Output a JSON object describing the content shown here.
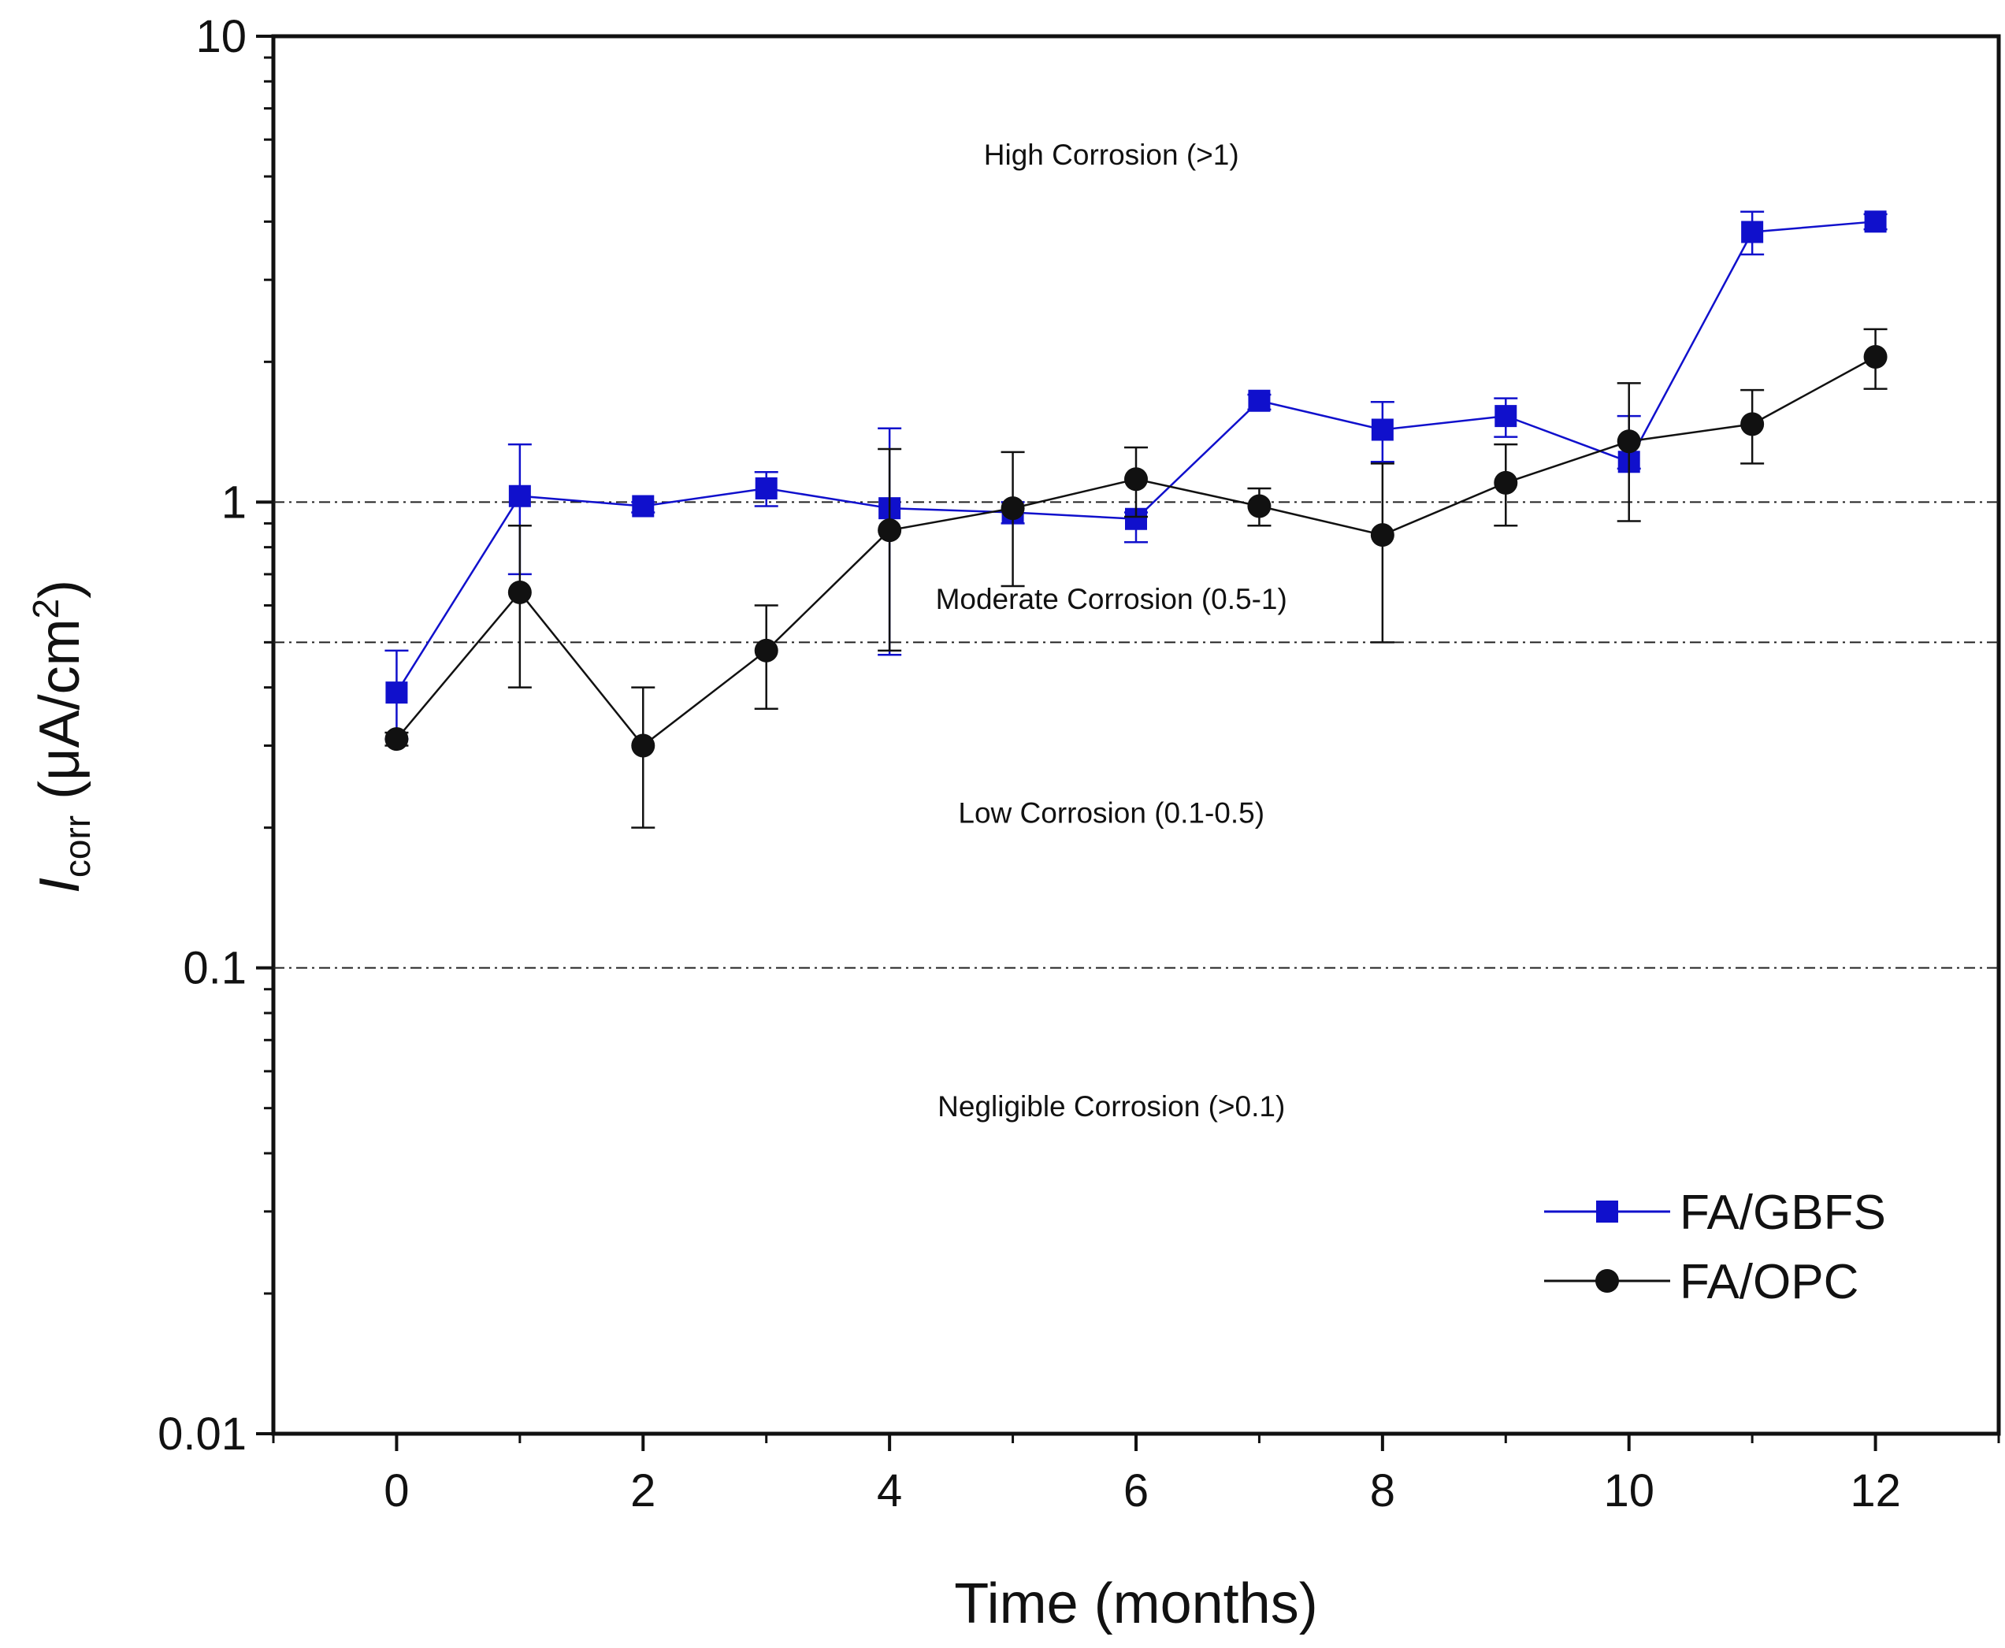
{
  "chart_data": {
    "type": "line",
    "ylabel_main": "I",
    "ylabel_sub": "corr",
    "ylabel_unit_prefix": " (μA/cm",
    "ylabel_unit_sup": "2",
    "ylabel_unit_suffix": ")",
    "xlabel": "Time (months)",
    "yscale": "log",
    "xlim": [
      -1,
      13
    ],
    "ylim": [
      0.01,
      10
    ],
    "x_ticks": [
      0,
      2,
      4,
      6,
      8,
      10,
      12
    ],
    "x_tick_labels": [
      "0",
      "2",
      "4",
      "6",
      "8",
      "10",
      "12"
    ],
    "y_ticks": [
      0.01,
      0.1,
      1,
      10
    ],
    "y_tick_labels": [
      "0.01",
      "0.1",
      "1",
      "10"
    ],
    "thresholds": [
      1,
      0.5,
      0.1
    ],
    "regions": [
      {
        "label": "High Corrosion (>1)",
        "x": 5.8,
        "y": 5.3
      },
      {
        "label": "Moderate Corrosion (0.5-1)",
        "x": 5.8,
        "y": 0.59
      },
      {
        "label": "Low Corrosion (0.1-0.5)",
        "x": 5.8,
        "y": 0.205
      },
      {
        "label": "Negligible Corrosion (>0.1)",
        "x": 5.8,
        "y": 0.048
      }
    ],
    "series": [
      {
        "name": "FA/GBFS",
        "color": "#1010cc",
        "marker": "square",
        "x": [
          0,
          1,
          2,
          3,
          4,
          5,
          6,
          7,
          8,
          9,
          10,
          11,
          12
        ],
        "y": [
          0.39,
          1.03,
          0.98,
          1.07,
          0.97,
          0.95,
          0.92,
          1.65,
          1.43,
          1.53,
          1.22,
          3.8,
          4.0
        ],
        "err_low": [
          0.31,
          0.7,
          0.95,
          0.98,
          0.47,
          0.9,
          0.82,
          1.58,
          1.22,
          1.38,
          1.18,
          3.4,
          3.85
        ],
        "err_high": [
          0.48,
          1.33,
          1.0,
          1.16,
          1.44,
          1.0,
          0.95,
          1.7,
          1.64,
          1.67,
          1.53,
          4.2,
          4.15
        ]
      },
      {
        "name": "FA/OPC",
        "color": "#111111",
        "marker": "circle",
        "x": [
          0,
          1,
          2,
          3,
          4,
          5,
          6,
          7,
          8,
          9,
          10,
          11,
          12
        ],
        "y": [
          0.31,
          0.64,
          0.3,
          0.48,
          0.87,
          0.97,
          1.12,
          0.98,
          0.85,
          1.1,
          1.35,
          1.47,
          2.05
        ],
        "err_low": [
          0.3,
          0.4,
          0.2,
          0.36,
          0.48,
          0.66,
          0.93,
          0.89,
          0.5,
          0.89,
          0.91,
          1.21,
          1.75
        ],
        "err_high": [
          0.32,
          0.89,
          0.4,
          0.6,
          1.3,
          1.28,
          1.31,
          1.07,
          1.21,
          1.33,
          1.8,
          1.74,
          2.35
        ]
      }
    ]
  }
}
